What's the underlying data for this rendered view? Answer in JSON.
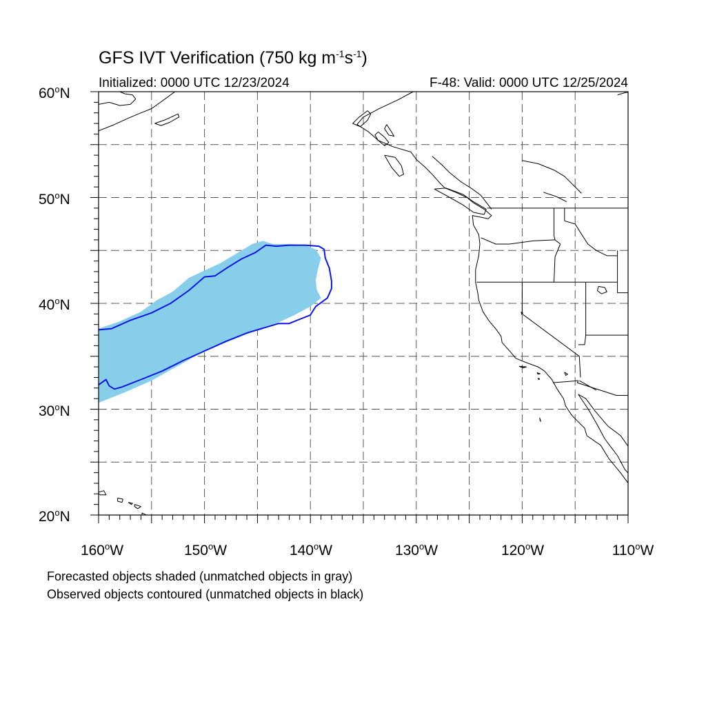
{
  "title": {
    "main_prefix": "GFS IVT Verification (750 kg m",
    "exp1": "-1",
    "mid": "s",
    "exp2": "-1",
    "suffix": ")"
  },
  "initialized": "Initialized: 0000 UTC 12/23/2024",
  "valid": "F-48: Valid: 0000 UTC 12/25/2024",
  "lat_labels": [
    {
      "num": "60",
      "deg": "o",
      "hem": "N"
    },
    {
      "num": "50",
      "deg": "o",
      "hem": "N"
    },
    {
      "num": "40",
      "deg": "o",
      "hem": "N"
    },
    {
      "num": "30",
      "deg": "o",
      "hem": "N"
    },
    {
      "num": "20",
      "deg": "o",
      "hem": "N"
    }
  ],
  "lon_labels": [
    {
      "num": "160",
      "deg": "o",
      "hem": "W"
    },
    {
      "num": "150",
      "deg": "o",
      "hem": "W"
    },
    {
      "num": "140",
      "deg": "o",
      "hem": "W"
    },
    {
      "num": "130",
      "deg": "o",
      "hem": "W"
    },
    {
      "num": "120",
      "deg": "o",
      "hem": "W"
    },
    {
      "num": "110",
      "deg": "o",
      "hem": "W"
    }
  ],
  "legend": {
    "line1": "Forecasted objects shaded (unmatched objects in gray)",
    "line2": "Observed objects contoured (unmatched objects in black)"
  },
  "map": {
    "extent": {
      "lon": [
        -160,
        -110
      ],
      "lat": [
        20,
        60
      ]
    },
    "grid_lon": [
      -155,
      -150,
      -145,
      -140,
      -135,
      -130,
      -125,
      -120,
      -115
    ],
    "grid_lat": [
      25,
      30,
      35,
      40,
      45,
      50,
      55
    ],
    "colors": {
      "forecast_fill": "#87ceeb",
      "observed_contour": "#0a14e6",
      "coast": "#000000",
      "grid": "#555555"
    },
    "forecast_object": [
      [
        -160,
        37.6
      ],
      [
        -158,
        38.3
      ],
      [
        -156,
        39.2
      ],
      [
        -154.5,
        40.3
      ],
      [
        -153,
        41.1
      ],
      [
        -151.5,
        42.4
      ],
      [
        -150,
        43.1
      ],
      [
        -148.5,
        43.8
      ],
      [
        -147,
        44.7
      ],
      [
        -145.5,
        45.6
      ],
      [
        -144.5,
        45.9
      ],
      [
        -143.5,
        45.6
      ],
      [
        -142,
        45.6
      ],
      [
        -140.5,
        45.5
      ],
      [
        -139.5,
        45.1
      ],
      [
        -139,
        44.3
      ],
      [
        -139.3,
        43.2
      ],
      [
        -139.5,
        42.2
      ],
      [
        -139.4,
        41.3
      ],
      [
        -139,
        40.5
      ],
      [
        -140,
        39.7
      ],
      [
        -141.5,
        38.9
      ],
      [
        -143,
        38.2
      ],
      [
        -145,
        37.5
      ],
      [
        -147.5,
        36.5
      ],
      [
        -150,
        35.5
      ],
      [
        -152.5,
        34.1
      ],
      [
        -155,
        32.7
      ],
      [
        -157.5,
        31.6
      ],
      [
        -160,
        30.6
      ]
    ],
    "observed_contour": [
      [
        -160,
        37.5
      ],
      [
        -158.8,
        37.6
      ],
      [
        -157,
        38.4
      ],
      [
        -155,
        39.1
      ],
      [
        -153.2,
        40.0
      ],
      [
        -151.5,
        41.2
      ],
      [
        -150,
        42.5
      ],
      [
        -149,
        42.6
      ],
      [
        -147.8,
        43.4
      ],
      [
        -146.5,
        44.2
      ],
      [
        -145.2,
        44.8
      ],
      [
        -144.2,
        45.5
      ],
      [
        -143.2,
        45.4
      ],
      [
        -142,
        45.5
      ],
      [
        -140.5,
        45.5
      ],
      [
        -139.2,
        45.4
      ],
      [
        -138.7,
        45.1
      ],
      [
        -138.6,
        44.3
      ],
      [
        -138.2,
        43.3
      ],
      [
        -138.0,
        42.1
      ],
      [
        -138.0,
        41.4
      ],
      [
        -138.4,
        40.5
      ],
      [
        -139.5,
        39.7
      ],
      [
        -140,
        38.9
      ],
      [
        -141,
        38.5
      ],
      [
        -142,
        38.1
      ],
      [
        -143,
        38.1
      ],
      [
        -144,
        37.8
      ],
      [
        -146,
        37.2
      ],
      [
        -148,
        36.4
      ],
      [
        -150,
        35.5
      ],
      [
        -152,
        34.6
      ],
      [
        -154,
        33.6
      ],
      [
        -156,
        32.8
      ],
      [
        -157.8,
        32.1
      ],
      [
        -158.5,
        31.9
      ],
      [
        -159,
        32.2
      ],
      [
        -159.3,
        32.8
      ],
      [
        -160,
        32.3
      ]
    ],
    "coastline_na": [
      [
        -130.3,
        60.0
      ],
      [
        -131.8,
        59.2
      ],
      [
        -133.5,
        58.4
      ],
      [
        -135,
        57.6
      ],
      [
        -135.6,
        56.9
      ],
      [
        -134.5,
        56.2
      ],
      [
        -133.6,
        55.4
      ],
      [
        -132.2,
        54.8
      ],
      [
        -130.5,
        54.3
      ],
      [
        -130.0,
        53.6
      ],
      [
        -129.2,
        52.9
      ],
      [
        -128.5,
        52.2
      ],
      [
        -127.8,
        51.4
      ],
      [
        -127.3,
        50.9
      ],
      [
        -126.3,
        50.5
      ],
      [
        -125.2,
        50.0
      ],
      [
        -124.6,
        49.5
      ],
      [
        -123.6,
        48.9
      ],
      [
        -122.9,
        48.3
      ],
      [
        -123.2,
        48.0
      ],
      [
        -124.7,
        48.3
      ],
      [
        -124.6,
        47.4
      ],
      [
        -124.1,
        46.5
      ],
      [
        -124.0,
        45.6
      ],
      [
        -124.1,
        44.5
      ],
      [
        -124.4,
        43.2
      ],
      [
        -124.4,
        42.0
      ],
      [
        -124.2,
        41.0
      ],
      [
        -124.1,
        40.3
      ],
      [
        -123.7,
        39.2
      ],
      [
        -123.1,
        38.3
      ],
      [
        -122.5,
        37.6
      ],
      [
        -122.0,
        36.9
      ],
      [
        -121.9,
        36.3
      ],
      [
        -121.1,
        35.4
      ],
      [
        -120.6,
        34.8
      ],
      [
        -119.6,
        34.4
      ],
      [
        -118.5,
        34.0
      ],
      [
        -117.9,
        33.6
      ],
      [
        -117.2,
        32.8
      ],
      [
        -116.7,
        31.9
      ],
      [
        -116.1,
        31.0
      ],
      [
        -115.9,
        30.3
      ],
      [
        -115.3,
        29.4
      ],
      [
        -114.1,
        28.2
      ],
      [
        -113.9,
        27.5
      ],
      [
        -112.6,
        26.6
      ],
      [
        -111.8,
        25.3
      ],
      [
        -110.8,
        24.1
      ],
      [
        -109.9,
        22.9
      ],
      [
        -109.5,
        23.4
      ],
      [
        -110.3,
        24.3
      ],
      [
        -111.0,
        25.6
      ],
      [
        -112.2,
        27.2
      ],
      [
        -112.9,
        28.5
      ],
      [
        -113.7,
        29.9
      ],
      [
        -114.7,
        31.4
      ],
      [
        -114.0,
        31.0
      ],
      [
        -113.1,
        29.8
      ],
      [
        -111.9,
        28.4
      ],
      [
        -110.7,
        27.5
      ],
      [
        -110.0,
        26.5
      ],
      [
        -110.0,
        23.2
      ]
    ],
    "coastline_bc_inner": [
      [
        -128.5,
        53.9
      ],
      [
        -127.6,
        53.1
      ],
      [
        -126.9,
        52.4
      ],
      [
        -125.8,
        51.5
      ],
      [
        -124.7,
        50.8
      ],
      [
        -123.9,
        50.2
      ],
      [
        -123.2,
        49.3
      ],
      [
        -122.9,
        48.9
      ]
    ],
    "vancouver_island": [
      [
        -128.3,
        50.8
      ],
      [
        -127.0,
        50.1
      ],
      [
        -125.6,
        49.3
      ],
      [
        -124.6,
        48.6
      ],
      [
        -123.6,
        48.4
      ],
      [
        -123.4,
        48.9
      ],
      [
        -124.6,
        49.6
      ],
      [
        -125.6,
        50.3
      ],
      [
        -127.2,
        50.9
      ],
      [
        -128.3,
        50.8
      ]
    ],
    "haida_gwaii": [
      [
        -133.0,
        54.0
      ],
      [
        -132.0,
        53.8
      ],
      [
        -131.4,
        53.0
      ],
      [
        -131.2,
        52.2
      ],
      [
        -131.6,
        52.0
      ],
      [
        -132.3,
        52.8
      ],
      [
        -132.6,
        53.3
      ],
      [
        -133.0,
        54.0
      ]
    ],
    "se_alaska_islands": [
      [
        [
          -134.6,
          58.2
        ],
        [
          -135.4,
          57.6
        ],
        [
          -136.0,
          57.0
        ],
        [
          -135.3,
          56.7
        ],
        [
          -134.6,
          57.3
        ],
        [
          -134.3,
          57.9
        ],
        [
          -134.6,
          58.2
        ]
      ],
      [
        [
          -133.6,
          56.2
        ],
        [
          -133.0,
          55.7
        ],
        [
          -132.6,
          55.2
        ],
        [
          -133.0,
          54.9
        ],
        [
          -133.6,
          55.4
        ],
        [
          -133.9,
          55.9
        ],
        [
          -133.6,
          56.2
        ]
      ],
      [
        [
          -132.8,
          56.9
        ],
        [
          -132.4,
          56.3
        ],
        [
          -132.1,
          55.8
        ],
        [
          -132.6,
          55.9
        ],
        [
          -133.0,
          56.5
        ],
        [
          -132.8,
          56.9
        ]
      ]
    ],
    "alaska_west": [
      [
        -160,
        58.8
      ],
      [
        -159.0,
        59.0
      ],
      [
        -158.0,
        58.7
      ],
      [
        -157.0,
        58.8
      ],
      [
        -156.5,
        59.3
      ],
      [
        -156.8,
        59.7
      ],
      [
        -157.5,
        59.8
      ],
      [
        -158.0,
        60.0
      ]
    ],
    "alaska_peninsula": [
      [
        -160,
        56.3
      ],
      [
        -158.5,
        56.9
      ],
      [
        -157.2,
        57.5
      ],
      [
        -156.0,
        58.0
      ],
      [
        -155.0,
        58.4
      ],
      [
        -154.3,
        58.9
      ],
      [
        -153.6,
        59.4
      ],
      [
        -152.8,
        60.0
      ]
    ],
    "kodiak": [
      [
        -154.7,
        57.0
      ],
      [
        -153.8,
        57.3
      ],
      [
        -152.5,
        57.9
      ],
      [
        -152.4,
        57.6
      ],
      [
        -153.3,
        57.1
      ],
      [
        -154.1,
        56.8
      ],
      [
        -154.7,
        57.0
      ]
    ],
    "gulf_alaska_east": [
      [
        -111,
        59.7
      ],
      [
        -110.3,
        59.9
      ],
      [
        -110.0,
        59.95
      ]
    ],
    "hawaii": [
      [
        [
          -160.2,
          22.1
        ],
        [
          -159.5,
          22.3
        ],
        [
          -159.3,
          21.9
        ],
        [
          -159.8,
          21.9
        ],
        [
          -160.2,
          22.1
        ]
      ],
      [
        [
          -158.2,
          21.6
        ],
        [
          -157.7,
          21.5
        ],
        [
          -157.8,
          21.2
        ],
        [
          -158.2,
          21.3
        ],
        [
          -158.2,
          21.6
        ]
      ],
      [
        [
          -157.2,
          21.2
        ],
        [
          -156.8,
          21.1
        ],
        [
          -156.9,
          21.0
        ],
        [
          -157.2,
          21.2
        ]
      ],
      [
        [
          -156.6,
          21.0
        ],
        [
          -156.0,
          20.8
        ],
        [
          -156.3,
          20.6
        ],
        [
          -156.6,
          20.8
        ],
        [
          -156.6,
          21.0
        ]
      ],
      [
        [
          -155.9,
          20.2
        ],
        [
          -155.1,
          19.8
        ],
        [
          -154.9,
          19.5
        ],
        [
          -155.5,
          19.0
        ],
        [
          -155.9,
          19.4
        ],
        [
          -155.9,
          20.2
        ]
      ]
    ],
    "channel_islands": [
      [
        [
          -120.3,
          34.05
        ],
        [
          -119.6,
          34.0
        ],
        [
          -119.9,
          33.9
        ],
        [
          -120.3,
          34.05
        ]
      ],
      [
        [
          -118.6,
          33.45
        ],
        [
          -118.3,
          33.35
        ],
        [
          -118.5,
          33.3
        ],
        [
          -118.6,
          33.45
        ]
      ],
      [
        [
          -118.5,
          32.95
        ],
        [
          -118.35,
          32.85
        ],
        [
          -118.45,
          32.8
        ],
        [
          -118.5,
          32.95
        ]
      ]
    ],
    "guadalupe": [
      [
        -118.35,
        29.2
      ],
      [
        -118.25,
        28.85
      ],
      [
        -118.3,
        28.9
      ],
      [
        -118.35,
        29.2
      ]
    ],
    "great_salt_lake": [
      [
        -112.8,
        41.6
      ],
      [
        -112.2,
        41.5
      ],
      [
        -112.0,
        41.1
      ],
      [
        -112.5,
        40.9
      ],
      [
        -112.9,
        41.2
      ],
      [
        -112.8,
        41.6
      ]
    ],
    "lake_tahoe": [
      [
        -120.1,
        39.2
      ],
      [
        -119.95,
        39.1
      ],
      [
        -120.05,
        38.95
      ],
      [
        -120.1,
        39.2
      ]
    ],
    "salton_sea": [
      [
        -116.0,
        33.5
      ],
      [
        -115.7,
        33.3
      ],
      [
        -115.9,
        33.2
      ],
      [
        -116.0,
        33.5
      ]
    ],
    "borders": [
      [
        [
          -123.3,
          49.0
        ],
        [
          -110,
          49.0
        ]
      ],
      [
        [
          -124.3,
          42.0
        ],
        [
          -117.0,
          42.0
        ],
        [
          -111.0,
          42.0
        ]
      ],
      [
        [
          -117.0,
          49.0
        ],
        [
          -117.0,
          46.4
        ],
        [
          -116.9,
          46.0
        ],
        [
          -116.4,
          45.6
        ],
        [
          -116.9,
          44.4
        ],
        [
          -117.0,
          42.0
        ]
      ],
      [
        [
          -123.9,
          46.2
        ],
        [
          -122.5,
          45.6
        ],
        [
          -121.2,
          45.6
        ],
        [
          -119.0,
          45.9
        ],
        [
          -116.9,
          46.0
        ]
      ],
      [
        [
          -120.0,
          42.0
        ],
        [
          -120.0,
          39.0
        ],
        [
          -114.6,
          35.0
        ],
        [
          -114.5,
          33.0
        ]
      ],
      [
        [
          -114.0,
          42.0
        ],
        [
          -114.0,
          37.0
        ],
        [
          -114.1,
          36.1
        ],
        [
          -114.7,
          36.1
        ]
      ],
      [
        [
          -114.0,
          37.0
        ],
        [
          -110.0,
          37.0
        ]
      ],
      [
        [
          -117.1,
          32.5
        ],
        [
          -114.7,
          32.7
        ],
        [
          -114.8,
          32.5
        ],
        [
          -111.1,
          31.3
        ],
        [
          -110.0,
          31.3
        ]
      ],
      [
        [
          -116.0,
          49.0
        ],
        [
          -116.0,
          47.8
        ],
        [
          -115.0,
          47.5
        ],
        [
          -114.5,
          46.7
        ],
        [
          -113.8,
          45.6
        ],
        [
          -113.0,
          45.0
        ],
        [
          -112.0,
          44.5
        ],
        [
          -111.0,
          44.5
        ]
      ],
      [
        [
          -111.0,
          45.0
        ],
        [
          -111.0,
          41.0
        ],
        [
          -110.0,
          41.0
        ]
      ],
      [
        [
          -114.6,
          32.7
        ],
        [
          -113.0,
          31.8
        ]
      ]
    ],
    "canada_rivers": [
      [
        [
          -120.0,
          53.5
        ],
        [
          -118.5,
          53.2
        ],
        [
          -117.0,
          52.6
        ],
        [
          -116.0,
          52.0
        ],
        [
          -115.0,
          51.0
        ],
        [
          -114.4,
          50.4
        ]
      ],
      [
        [
          -118.0,
          50.5
        ],
        [
          -116.8,
          50.1
        ],
        [
          -115.8,
          49.6
        ]
      ]
    ]
  }
}
